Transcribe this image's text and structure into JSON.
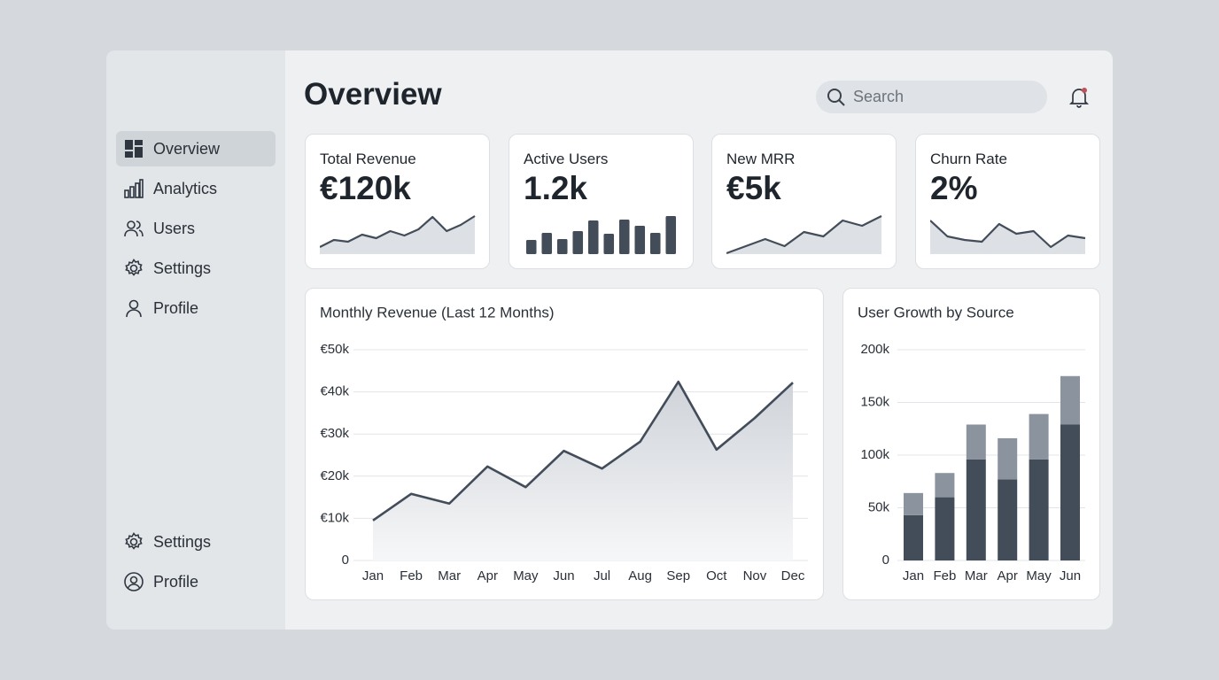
{
  "sidebar": {
    "nav": [
      {
        "label": "Overview",
        "active": true
      },
      {
        "label": "Analytics"
      },
      {
        "label": "Users"
      },
      {
        "label": "Settings"
      },
      {
        "label": "Profile"
      }
    ],
    "footer": [
      {
        "label": "Settings"
      },
      {
        "label": "Profile"
      }
    ]
  },
  "header": {
    "title": "Overview",
    "search_placeholder": "Search"
  },
  "kpis": [
    {
      "label": "Total Revenue",
      "value": "€120k",
      "sparkline": {
        "type": "area",
        "values": [
          8,
          16,
          14,
          22,
          18,
          26,
          21,
          28,
          42,
          26,
          33,
          43
        ]
      }
    },
    {
      "label": "Active Users",
      "value": "1.2k",
      "sparkline": {
        "type": "bar",
        "values": [
          16,
          24,
          17,
          26,
          38,
          23,
          39,
          32,
          24,
          43
        ]
      }
    },
    {
      "label": "New MRR",
      "value": "€5k",
      "sparkline": {
        "type": "area",
        "values": [
          1,
          9,
          17,
          9,
          25,
          20,
          38,
          32,
          43
        ]
      }
    },
    {
      "label": "Churn Rate",
      "value": "2%",
      "sparkline": {
        "type": "area",
        "values": [
          38,
          20,
          16,
          14,
          34,
          23,
          26,
          8,
          21,
          18
        ]
      }
    }
  ],
  "chart_data": [
    {
      "type": "line",
      "title": "Monthly Revenue (Last 12 Months)",
      "categories": [
        "Jan",
        "Feb",
        "Mar",
        "Apr",
        "May",
        "Jun",
        "Jul",
        "Aug",
        "Sep",
        "Oct",
        "Nov",
        "Dec"
      ],
      "values": [
        9500,
        15800,
        13500,
        22300,
        17400,
        26000,
        21800,
        28200,
        42400,
        26300,
        33800,
        42200
      ],
      "color": "#434d5a",
      "ylim": [
        0,
        50000
      ],
      "yticks": [
        0,
        {
          "value": 10000,
          "label": "€10k"
        },
        {
          "value": 20000,
          "label": "€20k"
        },
        {
          "value": 30000,
          "label": "€30k"
        },
        {
          "value": 40000,
          "label": "€40k"
        },
        {
          "value": 50000,
          "label": "€50k"
        }
      ],
      "grid": true
    },
    {
      "type": "stacked_bar",
      "title": "User Growth by Source",
      "categories": [
        "Jan",
        "Feb",
        "Mar",
        "Apr",
        "May",
        "Jun"
      ],
      "series": [
        {
          "color": "#434d5a",
          "values": [
            43000,
            60000,
            96000,
            77000,
            96000,
            129000
          ]
        },
        {
          "color": "#8a939e",
          "values": [
            21000,
            23000,
            33000,
            39000,
            43000,
            46000
          ]
        }
      ],
      "ylim": [
        0,
        200000
      ],
      "yticks": [
        0,
        {
          "value": 50000,
          "label": "50k"
        },
        {
          "value": 100000,
          "label": "100k"
        },
        {
          "value": 150000,
          "label": "150k"
        },
        {
          "value": 200000,
          "label": "200k"
        }
      ],
      "grid": true
    }
  ]
}
